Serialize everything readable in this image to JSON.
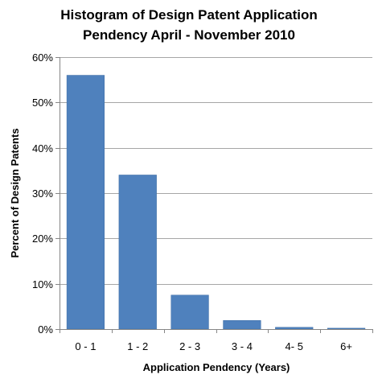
{
  "chart_data": {
    "type": "bar",
    "title_lines": [
      "Histogram of Design Patent Application",
      "Pendency April - November 2010"
    ],
    "xlabel": "Application Pendency (Years)",
    "ylabel": "Percent of Design Patents",
    "categories": [
      "0 - 1",
      "1 - 2",
      "2 - 3",
      "3 - 4",
      "4- 5",
      "6+"
    ],
    "values": [
      56.0,
      34.0,
      7.5,
      1.9,
      0.4,
      0.2
    ],
    "unit": "%",
    "ylim": [
      0,
      60
    ],
    "yticks": [
      "0%",
      "10%",
      "20%",
      "30%",
      "40%",
      "50%",
      "60%"
    ],
    "grid": true,
    "legend": "none",
    "colors": {
      "bar": "#4f81bd",
      "bar_stroke": "#3a6aa3",
      "grid": "#a6a6a6",
      "axis": "#868686"
    }
  }
}
